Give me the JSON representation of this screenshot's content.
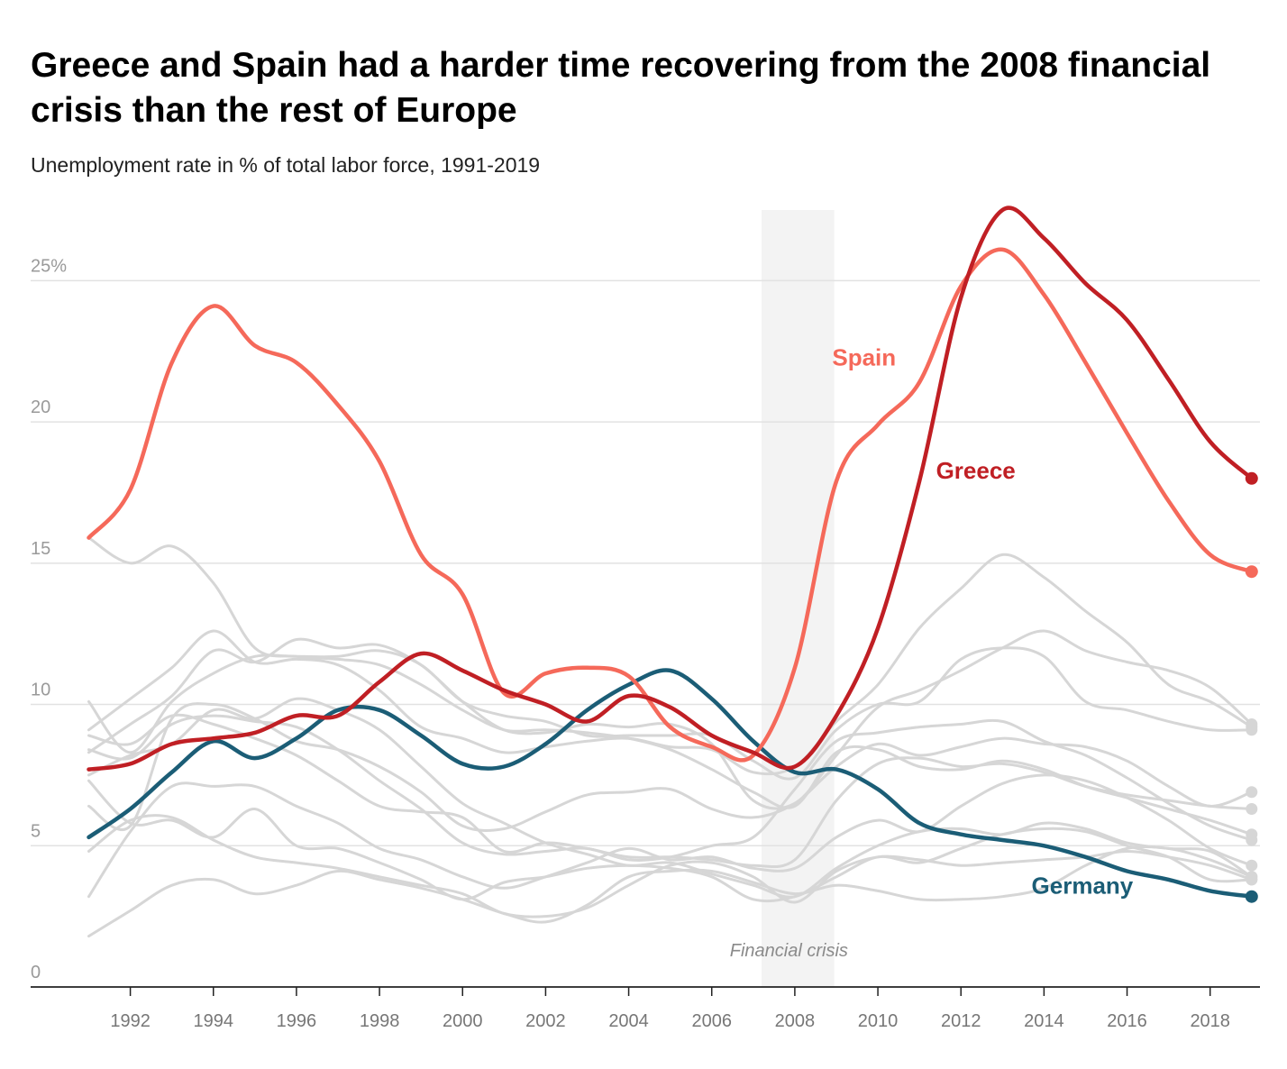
{
  "title": "Greece and Spain had a harder time recovering from the 2008 financial crisis than the rest of Europe",
  "subtitle": "Unemployment rate in % of total labor force, 1991-2019",
  "colors": {
    "spain": "#f5695a",
    "greece": "#c01f24",
    "germany": "#1b5d76",
    "other": "#d6d6d6",
    "crisis_band": "#f3f3f3",
    "grid": "#e2e2e2",
    "axis": "#222222"
  },
  "chart_data": {
    "type": "line",
    "ylim": [
      0,
      27.5
    ],
    "xlim": [
      1989.6,
      2019.2
    ],
    "y_ticks": [
      0,
      5,
      10,
      15,
      20,
      25
    ],
    "y_tick_labels": [
      "0",
      "5",
      "10",
      "15",
      "20",
      "25%"
    ],
    "x_ticks": [
      1992,
      1994,
      1996,
      1998,
      2000,
      2002,
      2004,
      2006,
      2008,
      2010,
      2012,
      2014,
      2016,
      2018
    ],
    "x_tick_labels": [
      "1992",
      "1994",
      "1996",
      "1998",
      "2000",
      "2002",
      "2004",
      "2006",
      "2008",
      "2010",
      "2012",
      "2014",
      "2016",
      "2018"
    ],
    "grid": true,
    "annotation": {
      "text": "Financial crisis",
      "x_start": 2007.2,
      "x_end": 2008.95
    },
    "x": [
      1991,
      1992,
      1993,
      1994,
      1995,
      1996,
      1997,
      1998,
      1999,
      2000,
      2001,
      2002,
      2003,
      2004,
      2005,
      2006,
      2007,
      2008,
      2009,
      2010,
      2011,
      2012,
      2013,
      2014,
      2015,
      2016,
      2017,
      2018,
      2019
    ],
    "highlighted": [
      {
        "name": "Spain",
        "color": "#f5695a",
        "label_x": 2008.9,
        "label_y": 22.0,
        "values": [
          15.9,
          17.6,
          22.1,
          24.1,
          22.7,
          22.1,
          20.6,
          18.6,
          15.3,
          13.9,
          10.4,
          11.1,
          11.3,
          11.0,
          9.2,
          8.5,
          8.2,
          11.3,
          17.9,
          19.9,
          21.4,
          24.8,
          26.1,
          24.5,
          22.1,
          19.6,
          17.2,
          15.3,
          14.7
        ]
      },
      {
        "name": "Greece",
        "color": "#c01f24",
        "label_x": 2011.4,
        "label_y": 18.0,
        "values": [
          7.7,
          7.9,
          8.6,
          8.8,
          9.0,
          9.6,
          9.6,
          10.8,
          11.8,
          11.2,
          10.5,
          10.0,
          9.4,
          10.3,
          9.9,
          8.9,
          8.3,
          7.8,
          9.6,
          12.7,
          17.9,
          24.4,
          27.5,
          26.5,
          24.9,
          23.6,
          21.5,
          19.3,
          18.0
        ]
      },
      {
        "name": "Germany",
        "color": "#1b5d76",
        "label_x": 2013.7,
        "label_y": 3.3,
        "values": [
          5.3,
          6.3,
          7.6,
          8.7,
          8.1,
          8.8,
          9.8,
          9.8,
          8.9,
          7.9,
          7.8,
          8.6,
          9.8,
          10.7,
          11.2,
          10.2,
          8.7,
          7.6,
          7.7,
          7.0,
          5.8,
          5.4,
          5.2,
          5.0,
          4.6,
          4.1,
          3.8,
          3.4,
          3.2
        ]
      }
    ],
    "others": [
      {
        "values": [
          15.9,
          15.0,
          15.6,
          14.3,
          12.0,
          11.7,
          11.6,
          11.4,
          10.7,
          9.8,
          9.1,
          9.1,
          9.0,
          8.8,
          8.4,
          7.7,
          6.9,
          6.4,
          8.3,
          8.4,
          7.8,
          7.7,
          8.0,
          7.7,
          7.1,
          6.7,
          6.3,
          5.9,
          5.4
        ]
      },
      {
        "values": [
          9.1,
          10.2,
          11.3,
          12.6,
          11.5,
          11.6,
          11.4,
          10.5,
          9.2,
          8.8,
          8.3,
          8.5,
          8.7,
          8.8,
          8.5,
          8.4,
          7.6,
          7.8,
          9.4,
          10.7,
          12.7,
          14.1,
          15.3,
          14.5,
          13.3,
          12.2,
          10.7,
          10.1,
          9.2
        ]
      },
      {
        "values": [
          6.4,
          5.7,
          9.5,
          10.0,
          9.5,
          8.7,
          8.4,
          7.8,
          6.9,
          5.7,
          5.6,
          6.2,
          6.8,
          6.9,
          7.0,
          6.3,
          6.0,
          6.5,
          7.8,
          8.6,
          8.2,
          8.5,
          8.8,
          8.6,
          8.5,
          8.0,
          7.1,
          6.4,
          6.9
        ]
      },
      {
        "values": [
          10.1,
          8.3,
          10.1,
          11.1,
          11.7,
          11.7,
          11.7,
          11.9,
          11.4,
          10.1,
          9.6,
          9.4,
          8.9,
          8.9,
          8.9,
          8.9,
          8.0,
          7.4,
          9.1,
          10.0,
          10.1,
          11.6,
          12.0,
          11.7,
          10.1,
          9.8,
          9.4,
          9.1,
          9.1
        ]
      },
      {
        "values": [
          8.3,
          9.3,
          10.3,
          11.9,
          11.5,
          12.3,
          12.0,
          12.1,
          11.4,
          10.1,
          9.1,
          9.0,
          9.3,
          9.2,
          9.3,
          8.6,
          6.6,
          6.5,
          8.2,
          9.9,
          10.5,
          11.2,
          12.0,
          12.6,
          11.9,
          11.5,
          11.2,
          10.6,
          9.3
        ]
      },
      {
        "values": [
          3.2,
          5.5,
          7.1,
          7.1,
          7.1,
          6.4,
          5.8,
          4.9,
          4.5,
          3.9,
          3.5,
          3.9,
          4.4,
          4.9,
          4.5,
          4.6,
          4.2,
          4.2,
          5.3,
          5.9,
          5.5,
          6.4,
          7.2,
          7.5,
          7.3,
          6.7,
          5.9,
          4.9,
          4.3
        ]
      },
      {
        "values": [
          7.3,
          5.8,
          5.9,
          5.3,
          6.3,
          5.0,
          4.9,
          4.4,
          3.8,
          3.1,
          3.7,
          3.9,
          4.2,
          4.3,
          4.2,
          3.9,
          3.1,
          3.2,
          3.9,
          4.6,
          4.4,
          4.9,
          5.4,
          5.6,
          5.5,
          5.0,
          4.6,
          3.8,
          3.8
        ]
      },
      {
        "values": [
          1.8,
          2.7,
          3.6,
          3.8,
          3.3,
          3.6,
          4.1,
          3.8,
          3.5,
          3.1,
          2.6,
          2.3,
          2.9,
          3.9,
          4.1,
          4.1,
          3.7,
          3.3,
          3.6,
          3.4,
          3.1,
          3.1,
          3.2,
          3.5,
          4.3,
          4.9,
          4.9,
          4.5,
          3.9
        ]
      },
      {
        "values": [
          8.9,
          8.6,
          9.6,
          9.3,
          8.8,
          8.2,
          7.3,
          6.4,
          6.2,
          6.0,
          4.8,
          5.1,
          4.9,
          4.6,
          4.6,
          4.5,
          4.3,
          4.5,
          6.6,
          7.9,
          8.1,
          7.8,
          7.9,
          7.6,
          7.1,
          6.8,
          6.6,
          6.4,
          6.3
        ]
      },
      {
        "values": [
          7.5,
          8.2,
          8.6,
          9.8,
          9.5,
          10.2,
          9.8,
          9.1,
          7.8,
          6.5,
          5.8,
          5.1,
          4.7,
          4.3,
          4.4,
          4.0,
          3.6,
          3.2,
          4.2,
          5.0,
          5.5,
          5.6,
          5.4,
          5.8,
          5.6,
          5.1,
          4.9,
          4.8,
          3.9
        ]
      },
      {
        "values": [
          8.4,
          8.1,
          9.3,
          9.6,
          9.4,
          9.2,
          8.4,
          7.3,
          6.3,
          5.1,
          4.7,
          4.8,
          4.9,
          4.5,
          4.6,
          5.0,
          5.3,
          7.0,
          8.7,
          9.0,
          9.2,
          9.3,
          9.4,
          8.7,
          8.2,
          7.4,
          6.5,
          5.7,
          5.2
        ]
      },
      {
        "values": [
          4.8,
          5.9,
          6.0,
          5.2,
          4.6,
          4.4,
          4.2,
          3.9,
          3.6,
          3.3,
          2.6,
          2.5,
          2.8,
          3.6,
          4.3,
          4.4,
          3.9,
          3.0,
          4.1,
          4.6,
          4.5,
          4.3,
          4.4,
          4.5,
          4.6,
          4.8,
          4.6,
          4.3,
          3.8
        ]
      }
    ]
  }
}
